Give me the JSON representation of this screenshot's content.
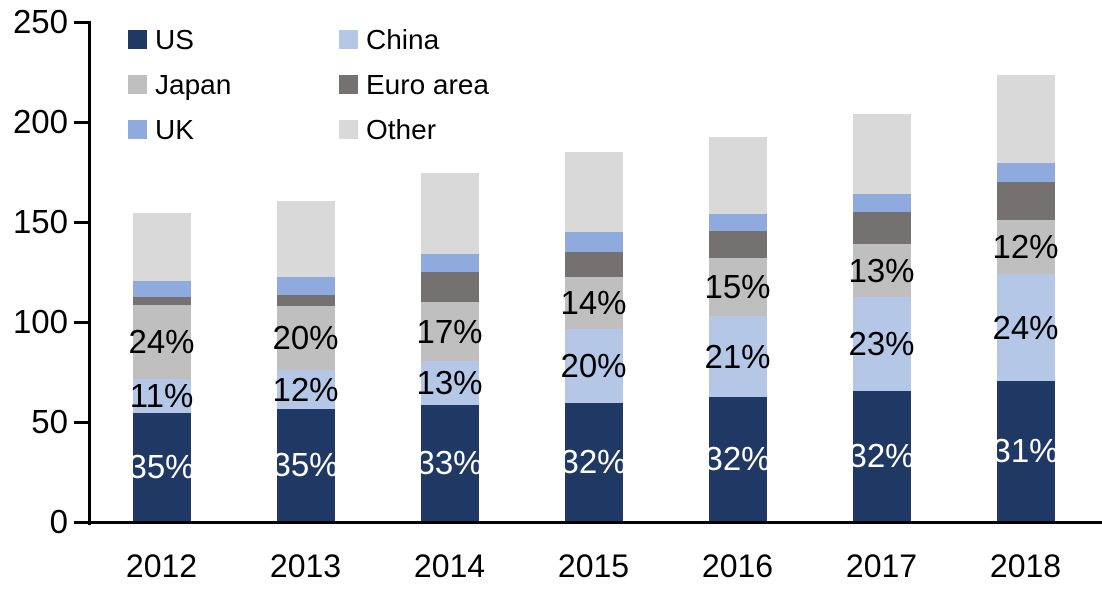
{
  "chart_data": {
    "type": "bar",
    "stacked": true,
    "title": "",
    "categories": [
      "2012",
      "2013",
      "2014",
      "2015",
      "2016",
      "2017",
      "2018"
    ],
    "series": [
      {
        "name": "US",
        "color": "#1f3864",
        "values": [
          54,
          56,
          58,
          59,
          62,
          65,
          70
        ],
        "labels": [
          "35%",
          "35%",
          "33%",
          "32%",
          "32%",
          "32%",
          "31%"
        ],
        "label_color": "#ffffff"
      },
      {
        "name": "China",
        "color": "#b4c7e7",
        "values": [
          17,
          19.5,
          22,
          37,
          40.5,
          47,
          53.5
        ],
        "labels": [
          "11%",
          "12%",
          "13%",
          "20%",
          "21%",
          "23%",
          "24%"
        ],
        "label_color": "#000000"
      },
      {
        "name": "Japan",
        "color": "#bfbfbf",
        "values": [
          37,
          32,
          29.5,
          26,
          29,
          26.5,
          27
        ],
        "labels": [
          "24%",
          "20%",
          "17%",
          "14%",
          "15%",
          "13%",
          "12%"
        ],
        "label_color": "#000000"
      },
      {
        "name": "Euro area",
        "color": "#767171",
        "values": [
          4,
          5.5,
          15,
          12.5,
          13.5,
          16,
          19
        ]
      },
      {
        "name": "UK",
        "color": "#8faadc",
        "values": [
          8,
          9,
          9,
          10,
          8.5,
          9,
          9.5
        ]
      },
      {
        "name": "Other",
        "color": "#d9d9d9",
        "values": [
          34,
          38,
          40.5,
          40,
          38.5,
          40,
          44
        ]
      }
    ],
    "y_axis": {
      "min": 0,
      "max": 250,
      "tick_interval": 50,
      "ticks": [
        0,
        50,
        100,
        150,
        200,
        250
      ]
    },
    "x_axis": {
      "labels": [
        "2012",
        "2013",
        "2014",
        "2015",
        "2016",
        "2017",
        "2018"
      ]
    },
    "legend": {
      "position": "top-left",
      "columns": 2,
      "items": [
        "US",
        "China",
        "Japan",
        "Euro area",
        "UK",
        "Other"
      ]
    },
    "grid": false,
    "axis_color": "#000000",
    "background_color": "#ffffff"
  }
}
